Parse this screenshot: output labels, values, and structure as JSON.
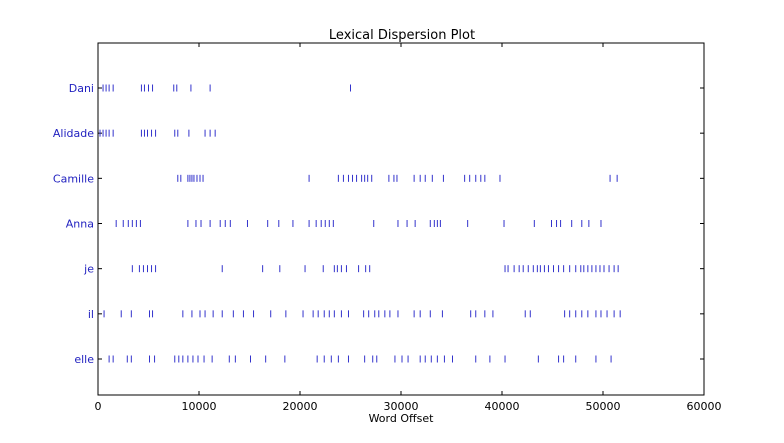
{
  "chart_data": {
    "type": "scatter",
    "title": "Lexical Dispersion Plot",
    "xlabel": "Word Offset",
    "ylabel": "",
    "xlim": [
      0,
      60000
    ],
    "xticks": [
      "0",
      "10000",
      "20000",
      "30000",
      "40000",
      "50000",
      "60000"
    ],
    "xtick_values": [
      0,
      10000,
      20000,
      30000,
      40000,
      50000,
      60000
    ],
    "grid": false,
    "marker": "|",
    "colors": {
      "marker": "#3333cc",
      "label": "#1f1fbf",
      "axes": "#000000"
    },
    "categories": [
      "Dani",
      "Alidade",
      "Camille",
      "Anna",
      "je",
      "il",
      "elle"
    ],
    "series": [
      {
        "name": "Dani",
        "x": [
          500,
          800,
          1100,
          1500,
          4300,
          4600,
          5000,
          5400,
          7500,
          7800,
          9200,
          11100,
          25000
        ]
      },
      {
        "name": "Alidade",
        "x": [
          200,
          500,
          800,
          1100,
          1500,
          4300,
          4600,
          4900,
          5300,
          5700,
          7600,
          7900,
          9000,
          10600,
          11100,
          11600
        ]
      },
      {
        "name": "Camille",
        "x": [
          7900,
          8200,
          8900,
          9100,
          9300,
          9500,
          9800,
          10100,
          10400,
          20900,
          23800,
          24300,
          24800,
          25200,
          25600,
          26100,
          26400,
          26700,
          27100,
          28800,
          29300,
          29600,
          31300,
          31900,
          32400,
          33100,
          34200,
          36300,
          36800,
          37400,
          37900,
          38300,
          39800,
          50700,
          51400
        ]
      },
      {
        "name": "Anna",
        "x": [
          1800,
          2500,
          3000,
          3400,
          3800,
          4200,
          8900,
          9700,
          10200,
          11100,
          12100,
          12600,
          13100,
          14800,
          16800,
          17900,
          19300,
          20900,
          21600,
          22100,
          22500,
          22900,
          23300,
          27300,
          29700,
          30600,
          31400,
          32900,
          33300,
          33600,
          33900,
          36600,
          40200,
          43200,
          44900,
          45400,
          45800,
          46900,
          47900,
          48600,
          49800
        ]
      },
      {
        "name": "je",
        "x": [
          3400,
          4100,
          4500,
          4900,
          5300,
          5700,
          12300,
          16300,
          18000,
          20500,
          22300,
          23400,
          23700,
          24100,
          24600,
          25800,
          26500,
          26900,
          40300,
          40600,
          41200,
          41700,
          42100,
          42600,
          43100,
          43500,
          43800,
          44200,
          44600,
          45100,
          45600,
          46100,
          46700,
          47300,
          47800,
          48100,
          48500,
          48900,
          49300,
          49700,
          50100,
          50600,
          51100,
          51500
        ]
      },
      {
        "name": "il",
        "x": [
          600,
          2300,
          3300,
          5100,
          5400,
          8400,
          9300,
          10100,
          10600,
          11400,
          12300,
          13400,
          14400,
          15400,
          17100,
          18600,
          20300,
          21300,
          21800,
          22400,
          22900,
          23400,
          24100,
          24800,
          26300,
          26800,
          27400,
          27800,
          28400,
          28900,
          29700,
          31300,
          31900,
          32900,
          34100,
          36900,
          37400,
          38300,
          39100,
          42300,
          42800,
          46200,
          46700,
          47300,
          47900,
          48500,
          49300,
          49800,
          50400,
          51100,
          51700
        ]
      },
      {
        "name": "elle",
        "x": [
          1100,
          1500,
          2900,
          3300,
          5100,
          5600,
          7600,
          8000,
          8400,
          8900,
          9400,
          9900,
          10500,
          11300,
          13000,
          13600,
          15100,
          16600,
          18500,
          21700,
          22400,
          23100,
          23800,
          24800,
          26400,
          27200,
          27600,
          29400,
          30100,
          30700,
          31900,
          32400,
          33000,
          33600,
          34300,
          35100,
          37400,
          38800,
          40300,
          43600,
          45600,
          46100,
          47300,
          49300,
          50800
        ]
      }
    ]
  }
}
